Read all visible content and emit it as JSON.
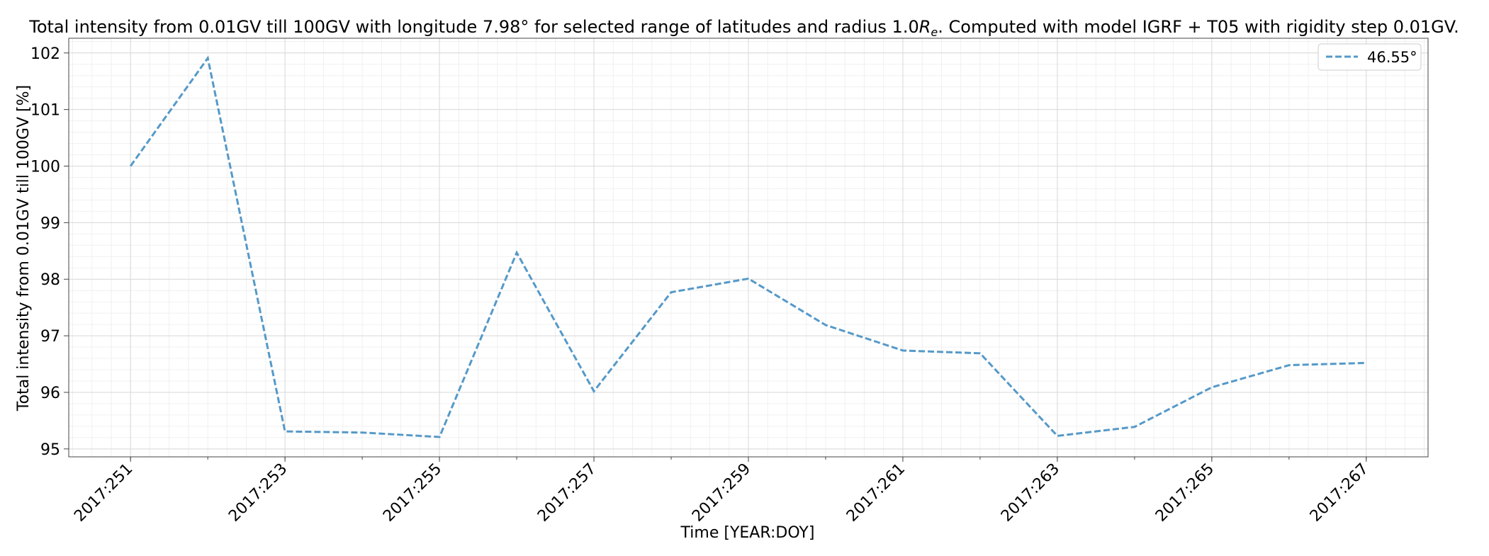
{
  "chart_data": {
    "type": "line",
    "title_prefix": "Total intensity from 0.01GV till 100GV with longitude 7.98° for selected range of latitudes and radius 1.0",
    "title_math_base": "R",
    "title_math_sub": "e",
    "title_suffix": ". Computed with model IGRF + T05 with rigidity step 0.01GV.",
    "xlabel": "Time [YEAR:DOY]",
    "ylabel": "Total intensity from 0.01GV till 100GV [%]",
    "x_ticks": [
      "2017:251",
      "2017:253",
      "2017:255",
      "2017:257",
      "2017:259",
      "2017:261",
      "2017:263",
      "2017:265",
      "2017:267"
    ],
    "y_ticks": [
      95,
      96,
      97,
      98,
      99,
      100,
      101,
      102
    ],
    "xlim": [
      "2017:250.2",
      "2017:267.8"
    ],
    "ylim": [
      94.86,
      102.26
    ],
    "grid": true,
    "legend_position": "top-right",
    "series": [
      {
        "name": "46.55°",
        "color": "#5599c8",
        "line_style": "dashed",
        "x": [
          "2017:251",
          "2017:252",
          "2017:253",
          "2017:254",
          "2017:255",
          "2017:256",
          "2017:257",
          "2017:258",
          "2017:259",
          "2017:260",
          "2017:261",
          "2017:262",
          "2017:263",
          "2017:264",
          "2017:265",
          "2017:266",
          "2017:267"
        ],
        "y": [
          100.0,
          101.91,
          95.31,
          95.29,
          95.21,
          98.47,
          96.02,
          97.77,
          98.01,
          97.19,
          96.74,
          96.69,
          95.23,
          95.39,
          96.09,
          96.48,
          96.52
        ]
      }
    ]
  }
}
